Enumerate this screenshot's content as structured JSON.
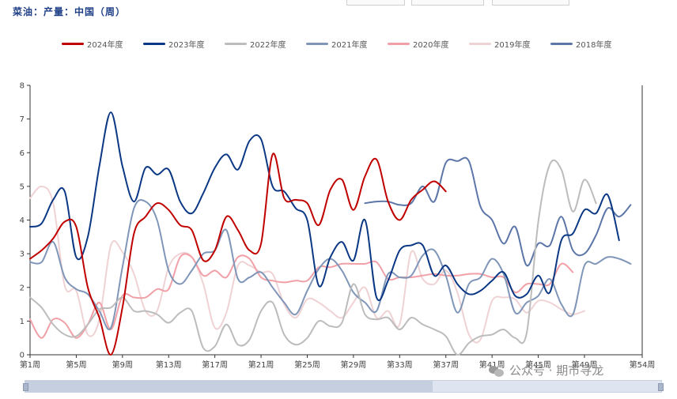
{
  "chart_data": {
    "type": "line",
    "title": "菜油：产量：中国（周）",
    "ylim": [
      0,
      8
    ],
    "yticks": [
      0,
      1,
      2,
      3,
      4,
      5,
      6,
      7,
      8
    ],
    "xlim": [
      1,
      54
    ],
    "xtick_labels": [
      {
        "x": 1,
        "label": "第1周"
      },
      {
        "x": 5,
        "label": "第5周"
      },
      {
        "x": 9,
        "label": "第9周"
      },
      {
        "x": 13,
        "label": "第13周"
      },
      {
        "x": 17,
        "label": "第17周"
      },
      {
        "x": 21,
        "label": "第21周"
      },
      {
        "x": 25,
        "label": "第25周"
      },
      {
        "x": 29,
        "label": "第29周"
      },
      {
        "x": 33,
        "label": "第33周"
      },
      {
        "x": 37,
        "label": "第37周"
      },
      {
        "x": 41,
        "label": "第41周"
      },
      {
        "x": 45,
        "label": "第45周"
      },
      {
        "x": 49,
        "label": "第49周"
      },
      {
        "x": 54,
        "label": "第54周"
      }
    ],
    "legend_position": "top",
    "grid": false,
    "series": [
      {
        "name": "2024年度",
        "color": "#c00000",
        "values": [
          2.85,
          3.1,
          3.45,
          3.95,
          3.8,
          2.0,
          1.1,
          0.0,
          1.4,
          3.6,
          4.1,
          4.5,
          4.3,
          3.85,
          3.7,
          2.8,
          3.1,
          4.1,
          3.7,
          3.1,
          3.3,
          5.95,
          4.65,
          4.6,
          4.5,
          3.85,
          4.9,
          5.2,
          4.3,
          5.3,
          5.8,
          4.55,
          4.0,
          4.6,
          4.9,
          5.15,
          4.85
        ]
      },
      {
        "name": "2023年度",
        "color": "#0b3884",
        "values": [
          3.8,
          3.9,
          4.6,
          4.85,
          2.9,
          3.5,
          5.6,
          7.2,
          5.6,
          4.55,
          5.55,
          5.35,
          5.5,
          4.55,
          4.2,
          4.8,
          5.55,
          5.95,
          5.5,
          6.35,
          6.4,
          5.0,
          4.85,
          4.35,
          4.0,
          2.05,
          2.9,
          3.35,
          2.8,
          4.0,
          1.7,
          2.2,
          3.1,
          3.25,
          3.25,
          2.35,
          2.65,
          2.1,
          1.8,
          1.9,
          2.2,
          2.45,
          1.75,
          1.8,
          2.35,
          1.85,
          3.4,
          3.6,
          4.3,
          4.2,
          4.75,
          3.4
        ]
      },
      {
        "name": "2022年度",
        "color": "#bcbcbc",
        "values": [
          1.7,
          1.4,
          0.9,
          0.6,
          0.55,
          0.9,
          1.35,
          1.4,
          1.7,
          1.3,
          1.3,
          1.2,
          0.95,
          1.25,
          1.3,
          0.2,
          0.25,
          0.9,
          0.3,
          0.45,
          1.3,
          1.55,
          0.6,
          0.3,
          0.5,
          1.0,
          0.85,
          0.95,
          2.1,
          1.2,
          1.05,
          1.1,
          0.75,
          1.1,
          0.9,
          0.75,
          0.55,
          0.0,
          0.35,
          0.55,
          0.6,
          0.75,
          0.5,
          0.65,
          3.95,
          5.65,
          5.5,
          4.25,
          5.2,
          4.5
        ]
      },
      {
        "name": "2021年度",
        "color": "#8096b8",
        "values": [
          2.75,
          2.75,
          3.35,
          2.3,
          1.95,
          1.8,
          1.3,
          0.8,
          2.6,
          4.35,
          4.55,
          4.0,
          2.5,
          2.1,
          2.5,
          3.0,
          3.1,
          3.7,
          2.25,
          2.3,
          2.45,
          2.0,
          1.55,
          1.2,
          1.9,
          2.55,
          2.85,
          2.5,
          1.85,
          1.55,
          1.3,
          2.4,
          2.3,
          2.35,
          2.95,
          3.1,
          2.35,
          1.25,
          2.1,
          2.3,
          2.85,
          2.4,
          1.25,
          1.55,
          1.75,
          2.25,
          1.5,
          1.2,
          2.65,
          2.7,
          2.9,
          2.85,
          2.7
        ]
      },
      {
        "name": "2020年度",
        "color": "#f0a0a6",
        "values": [
          1.05,
          0.5,
          1.05,
          0.95,
          0.5,
          0.9,
          1.55,
          0.75,
          1.75,
          1.7,
          1.7,
          1.95,
          1.95,
          2.9,
          2.9,
          2.35,
          2.5,
          2.3,
          2.9,
          2.85,
          2.3,
          2.2,
          2.15,
          2.2,
          2.2,
          2.6,
          2.6,
          2.7,
          2.7,
          2.7,
          2.75,
          2.25,
          2.3,
          2.3,
          2.35,
          2.4,
          2.35,
          2.35,
          2.4,
          2.4,
          2.3,
          2.3,
          1.85,
          2.1,
          2.1,
          2.1,
          2.7,
          2.45
        ]
      },
      {
        "name": "2019年度",
        "color": "#efd2d4",
        "values": [
          4.65,
          5.0,
          4.5,
          2.05,
          1.9,
          0.6,
          1.05,
          3.25,
          3.05,
          2.4,
          1.3,
          1.3,
          2.6,
          3.0,
          2.9,
          2.1,
          0.8,
          1.25,
          2.65,
          2.65,
          2.45,
          2.4,
          1.5,
          1.1,
          1.65,
          1.55,
          1.3,
          1.1,
          1.55,
          2.0,
          1.1,
          1.3,
          0.9,
          3.05,
          2.25,
          2.1,
          2.5,
          1.85,
          0.6,
          0.45,
          1.6,
          1.7,
          1.65,
          1.25,
          1.6,
          1.55,
          1.35,
          1.2,
          1.3
        ]
      },
      {
        "name": "2018年度",
        "color": "#5c76a8",
        "values": [
          null,
          null,
          null,
          null,
          null,
          null,
          null,
          null,
          null,
          null,
          null,
          null,
          null,
          null,
          null,
          null,
          null,
          null,
          null,
          null,
          null,
          null,
          null,
          null,
          null,
          null,
          null,
          null,
          null,
          4.5,
          4.55,
          4.55,
          4.45,
          4.5,
          5.0,
          4.55,
          5.7,
          5.75,
          5.75,
          4.4,
          4.0,
          3.3,
          3.8,
          2.65,
          3.3,
          3.25,
          4.1,
          3.1,
          3.0,
          3.55,
          4.35,
          4.1,
          4.45
        ]
      }
    ]
  },
  "watermark": "公众号 · 期市寻龙"
}
